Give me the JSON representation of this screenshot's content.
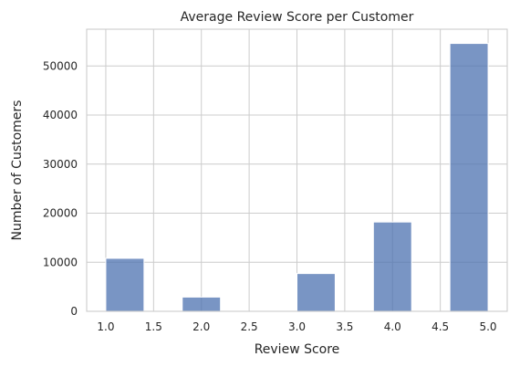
{
  "chart_data": {
    "type": "bar",
    "title": "Average Review Score per Customer",
    "xlabel": "Review Score",
    "ylabel": "Number of Customers",
    "xlim": [
      0.8,
      5.2
    ],
    "ylim": [
      0,
      57500
    ],
    "xticks": [
      1.0,
      1.5,
      2.0,
      2.5,
      3.0,
      3.5,
      4.0,
      4.5,
      5.0
    ],
    "xtick_labels": [
      "1.0",
      "1.5",
      "2.0",
      "2.5",
      "3.0",
      "3.5",
      "4.0",
      "4.5",
      "5.0"
    ],
    "yticks": [
      0,
      10000,
      20000,
      30000,
      40000,
      50000
    ],
    "ytick_labels": [
      "0",
      "10000",
      "20000",
      "30000",
      "40000",
      "50000"
    ],
    "bins": [
      {
        "x0": 1.0,
        "x1": 1.4,
        "value": 10800
      },
      {
        "x0": 1.4,
        "x1": 1.8,
        "value": 0
      },
      {
        "x0": 1.8,
        "x1": 2.2,
        "value": 2900
      },
      {
        "x0": 2.2,
        "x1": 2.6,
        "value": 0
      },
      {
        "x0": 2.6,
        "x1": 3.0,
        "value": 0
      },
      {
        "x0": 3.0,
        "x1": 3.4,
        "value": 7700
      },
      {
        "x0": 3.4,
        "x1": 3.8,
        "value": 0
      },
      {
        "x0": 3.8,
        "x1": 4.2,
        "value": 18200
      },
      {
        "x0": 4.2,
        "x1": 4.6,
        "value": 0
      },
      {
        "x0": 4.6,
        "x1": 5.0,
        "value": 54600
      }
    ],
    "grid": true,
    "bar_color": "#4c72b0",
    "bar_opacity": 0.75
  }
}
